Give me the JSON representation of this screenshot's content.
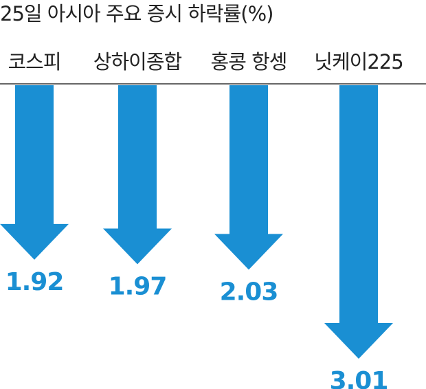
{
  "chart_data": {
    "type": "bar",
    "title": "25일 아시아 주요 증시 하락률(%)",
    "categories": [
      "코스피",
      "상하이종합",
      "홍콩 항셍",
      "닛케이225"
    ],
    "values": [
      1.92,
      1.97,
      2.03,
      3.01
    ],
    "color": "#1a8fd3"
  }
}
